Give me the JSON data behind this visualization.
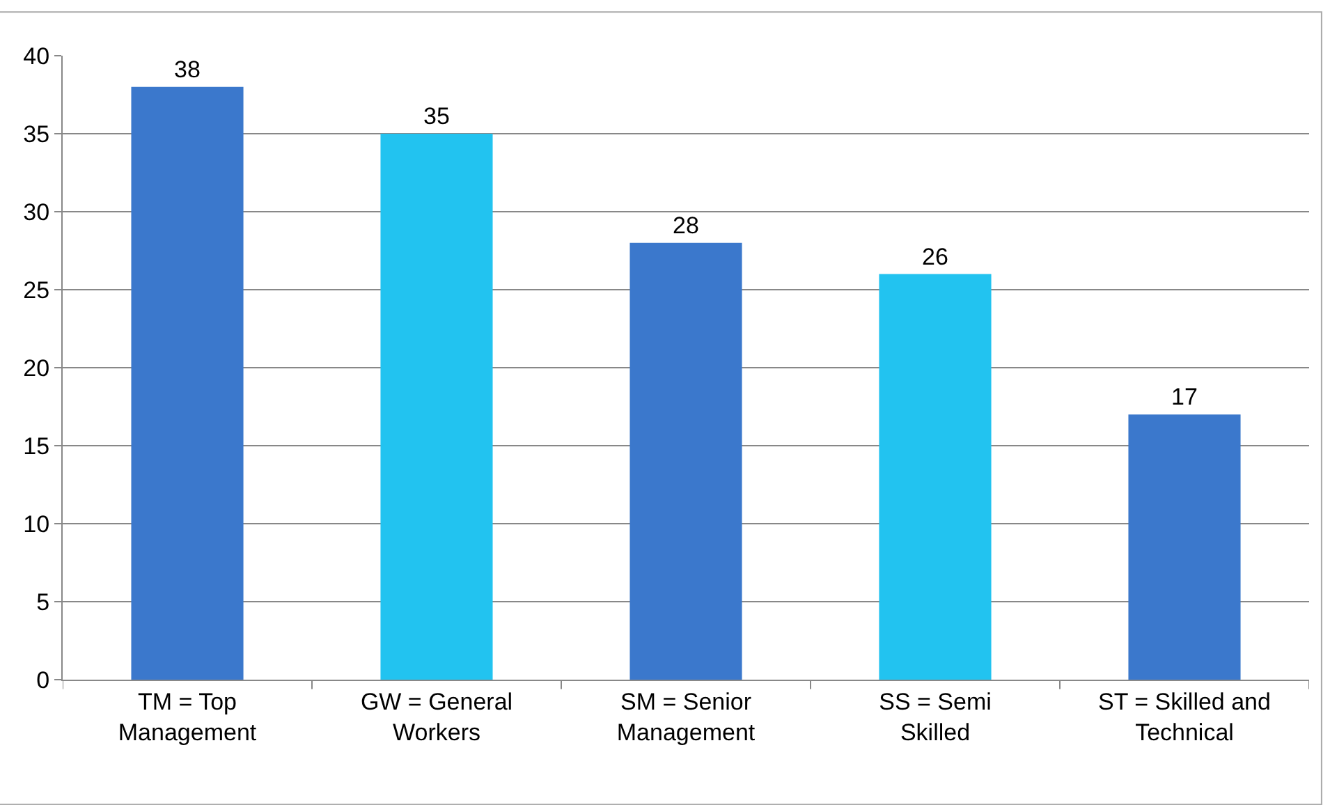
{
  "chart_data": {
    "type": "bar",
    "categories": [
      "TM = Top Management",
      "GW = General Workers",
      "SM = Senior Management",
      "SS = Semi Skilled",
      "ST = Skilled and Technical"
    ],
    "values": [
      38,
      35,
      28,
      26,
      17
    ],
    "colors": [
      "#3b78cc",
      "#22c3f0",
      "#3b78cc",
      "#22c3f0",
      "#3b78cc"
    ],
    "ylim": [
      0,
      40
    ],
    "yticks": [
      0,
      5,
      10,
      15,
      20,
      25,
      30,
      35,
      40
    ],
    "grid": "y",
    "data_labels": true
  }
}
